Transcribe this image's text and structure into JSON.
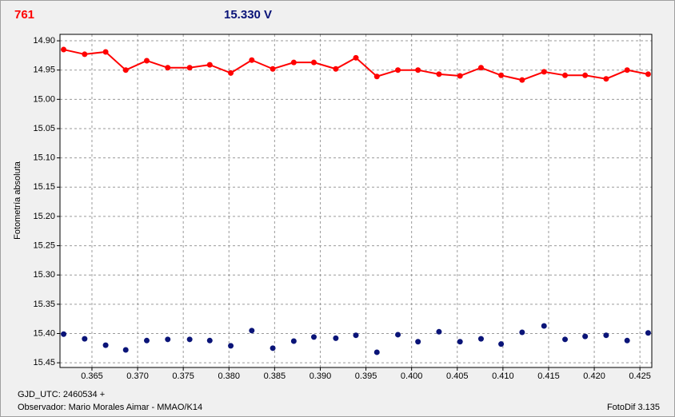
{
  "chart_data": {
    "type": "line",
    "y_label": "Fotometría absoluta",
    "footer_left_1": "GJD_UTC: 2460534 +",
    "footer_left_2": "Observador: Mario Morales Aimar - MMAO/K14",
    "footer_right": "FotoDif 3.135",
    "xlim": [
      0.3615,
      0.4263
    ],
    "ylim": [
      14.889,
      15.458
    ],
    "y_inverted": true,
    "grid": true,
    "xticks": [
      0.365,
      {
        "value": 0.37,
        "label": "0.370"
      },
      0.375,
      {
        "value": 0.38,
        "label": "0.380"
      },
      0.385,
      {
        "value": 0.39,
        "label": "0.390"
      },
      0.395,
      {
        "value": 0.4,
        "label": "0.400"
      },
      0.405,
      {
        "value": 0.41,
        "label": "0.410"
      },
      0.415,
      {
        "value": 0.42,
        "label": "0.420"
      },
      0.425
    ],
    "yticks": [
      {
        "value": 14.9,
        "label": "14.90"
      },
      14.95,
      {
        "value": 15.0,
        "label": "15.00"
      },
      15.05,
      {
        "value": 15.1,
        "label": "15.10"
      },
      15.15,
      {
        "value": 15.2,
        "label": "15.20"
      },
      15.25,
      {
        "value": 15.3,
        "label": "15.30"
      },
      15.35,
      {
        "value": 15.4,
        "label": "15.40"
      },
      15.45
    ],
    "x": [
      0.3619,
      0.3642,
      0.3665,
      0.3687,
      0.371,
      0.3733,
      0.3757,
      0.3779,
      0.3802,
      0.3825,
      0.3848,
      0.3871,
      0.3893,
      0.3917,
      0.3939,
      0.3962,
      0.3985,
      0.4007,
      0.403,
      0.4053,
      0.4076,
      0.4098,
      0.4121,
      0.4145,
      0.4168,
      0.419,
      0.4213,
      0.4236,
      0.4259
    ],
    "series": [
      {
        "name": "761",
        "color": "#ff0000",
        "line": true,
        "values": [
          14.915,
          14.923,
          14.919,
          14.95,
          14.934,
          14.946,
          14.946,
          14.941,
          14.955,
          14.933,
          14.948,
          14.937,
          14.937,
          14.948,
          14.929,
          14.961,
          14.95,
          14.95,
          14.957,
          14.96,
          14.946,
          14.959,
          14.967,
          14.953,
          14.959,
          14.959,
          14.965,
          14.95,
          14.957
        ]
      },
      {
        "name": "15.330 V",
        "color": "#0a1478",
        "line": false,
        "values": [
          15.401,
          15.409,
          15.42,
          15.428,
          15.412,
          15.41,
          15.41,
          15.412,
          15.421,
          15.395,
          15.425,
          15.413,
          15.406,
          15.408,
          15.403,
          15.432,
          15.402,
          15.414,
          15.397,
          15.414,
          15.409,
          15.418,
          15.398,
          15.387,
          15.41,
          15.405,
          15.403,
          15.412,
          15.399
        ]
      }
    ]
  }
}
